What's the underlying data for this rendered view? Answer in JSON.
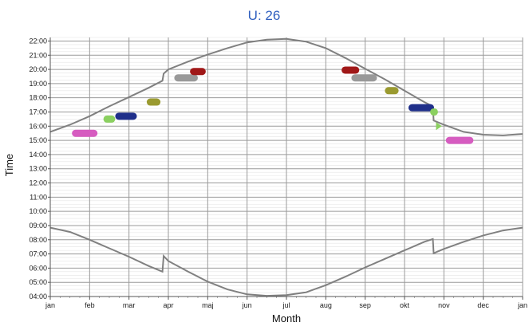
{
  "chart_data": {
    "type": "scatter",
    "title": "U: 26",
    "xlabel": "Month",
    "ylabel": "Time",
    "x_ticks": [
      "jan",
      "feb",
      "mar",
      "apr",
      "maj",
      "jun",
      "jul",
      "aug",
      "sep",
      "okt",
      "nov",
      "dec",
      "jan"
    ],
    "y_ticks": [
      "04:00",
      "05:00",
      "06:00",
      "07:00",
      "08:00",
      "09:00",
      "10:00",
      "11:00",
      "12:00",
      "13:00",
      "14:00",
      "15:00",
      "16:00",
      "17:00",
      "18:00",
      "19:00",
      "20:00",
      "21:00",
      "22:00"
    ],
    "ylim": [
      4,
      22.25
    ],
    "xlim": [
      0,
      12
    ],
    "grid": true,
    "curves": [
      {
        "role": "sunset",
        "color": "#808080",
        "points": [
          [
            0,
            15.6
          ],
          [
            0.5,
            16.1
          ],
          [
            1.0,
            16.7
          ],
          [
            1.5,
            17.4
          ],
          [
            2.0,
            18.05
          ],
          [
            2.5,
            18.7
          ],
          [
            2.85,
            19.2
          ],
          [
            2.88,
            19.7
          ],
          [
            3.0,
            20.0
          ],
          [
            3.5,
            20.55
          ],
          [
            4.0,
            21.05
          ],
          [
            4.5,
            21.5
          ],
          [
            5.0,
            21.9
          ],
          [
            5.5,
            22.1
          ],
          [
            6.0,
            22.15
          ],
          [
            6.5,
            21.95
          ],
          [
            7.0,
            21.5
          ],
          [
            7.5,
            20.8
          ],
          [
            8.0,
            20.05
          ],
          [
            8.5,
            19.3
          ],
          [
            9.0,
            18.5
          ],
          [
            9.5,
            17.7
          ],
          [
            9.72,
            17.4
          ],
          [
            9.74,
            16.4
          ],
          [
            10.0,
            16.1
          ],
          [
            10.5,
            15.6
          ],
          [
            11.0,
            15.4
          ],
          [
            11.5,
            15.35
          ],
          [
            12.0,
            15.45
          ]
        ]
      },
      {
        "role": "sunrise",
        "color": "#808080",
        "points": [
          [
            0,
            8.85
          ],
          [
            0.5,
            8.55
          ],
          [
            1.0,
            8.0
          ],
          [
            1.5,
            7.4
          ],
          [
            2.0,
            6.8
          ],
          [
            2.5,
            6.15
          ],
          [
            2.85,
            5.75
          ],
          [
            2.88,
            6.85
          ],
          [
            3.0,
            6.5
          ],
          [
            3.5,
            5.75
          ],
          [
            4.0,
            5.05
          ],
          [
            4.5,
            4.5
          ],
          [
            5.0,
            4.15
          ],
          [
            5.5,
            4.05
          ],
          [
            6.0,
            4.1
          ],
          [
            6.5,
            4.3
          ],
          [
            7.0,
            4.8
          ],
          [
            7.5,
            5.4
          ],
          [
            8.0,
            6.05
          ],
          [
            8.5,
            6.65
          ],
          [
            9.0,
            7.25
          ],
          [
            9.5,
            7.85
          ],
          [
            9.72,
            8.05
          ],
          [
            9.74,
            7.05
          ],
          [
            10.0,
            7.35
          ],
          [
            10.5,
            7.85
          ],
          [
            11.0,
            8.3
          ],
          [
            11.5,
            8.65
          ],
          [
            12.0,
            8.85
          ]
        ]
      }
    ],
    "marks": [
      {
        "shape": "capsule",
        "x1": 0.55,
        "x2": 1.2,
        "y": 15.5,
        "color": "#d65cc0"
      },
      {
        "shape": "capsule",
        "x1": 1.35,
        "x2": 1.65,
        "y": 16.5,
        "color": "#8bd060"
      },
      {
        "shape": "capsule",
        "x1": 1.65,
        "x2": 2.2,
        "y": 16.7,
        "color": "#1f2f8a"
      },
      {
        "shape": "capsule",
        "x1": 2.45,
        "x2": 2.8,
        "y": 17.7,
        "color": "#9a9a30"
      },
      {
        "shape": "capsule",
        "x1": 3.15,
        "x2": 3.75,
        "y": 19.4,
        "color": "#999999"
      },
      {
        "shape": "capsule",
        "x1": 3.55,
        "x2": 3.95,
        "y": 19.85,
        "color": "#a01818"
      },
      {
        "shape": "capsule",
        "x1": 7.4,
        "x2": 7.85,
        "y": 19.95,
        "color": "#a01818"
      },
      {
        "shape": "capsule",
        "x1": 7.65,
        "x2": 8.3,
        "y": 19.4,
        "color": "#999999"
      },
      {
        "shape": "capsule",
        "x1": 8.5,
        "x2": 8.85,
        "y": 18.5,
        "color": "#9a9a30"
      },
      {
        "shape": "capsule",
        "x1": 9.1,
        "x2": 9.75,
        "y": 17.3,
        "color": "#1f2f8a"
      },
      {
        "shape": "capsule",
        "x1": 9.65,
        "x2": 9.85,
        "y": 17.0,
        "color": "#8bd060"
      },
      {
        "shape": "triangle",
        "x1": 9.8,
        "x2": 9.95,
        "y": 16.0,
        "color": "#8bd060"
      },
      {
        "shape": "capsule",
        "x1": 10.05,
        "x2": 10.75,
        "y": 15.0,
        "color": "#d65cc0"
      }
    ]
  }
}
